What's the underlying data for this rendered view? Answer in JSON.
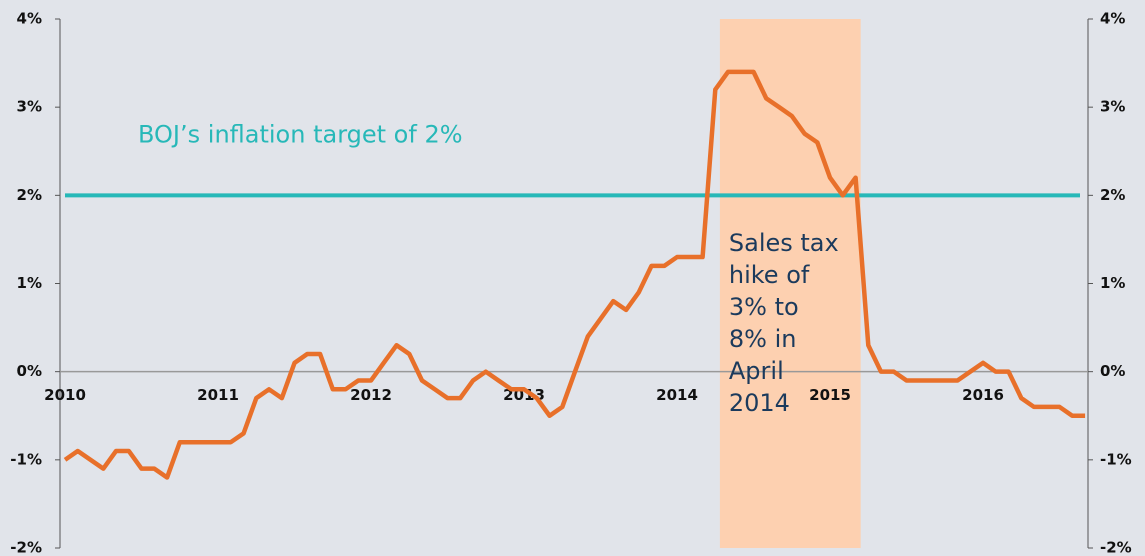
{
  "chart_data": {
    "type": "line",
    "x": [
      2010,
      2010.083,
      2010.167,
      2010.25,
      2010.333,
      2010.417,
      2010.5,
      2010.583,
      2010.667,
      2010.75,
      2010.833,
      2010.917,
      2011,
      2011.083,
      2011.167,
      2011.25,
      2011.333,
      2011.417,
      2011.5,
      2011.583,
      2011.667,
      2011.75,
      2011.833,
      2011.917,
      2012,
      2012.083,
      2012.167,
      2012.25,
      2012.333,
      2012.417,
      2012.5,
      2012.583,
      2012.667,
      2012.75,
      2012.833,
      2012.917,
      2013,
      2013.083,
      2013.167,
      2013.25,
      2013.333,
      2013.417,
      2013.5,
      2013.583,
      2013.667,
      2013.75,
      2013.833,
      2013.917,
      2014,
      2014.083,
      2014.167,
      2014.25,
      2014.333,
      2014.417,
      2014.5,
      2014.583,
      2014.667,
      2014.75,
      2014.833,
      2014.917,
      2015,
      2015.083,
      2015.167,
      2015.25,
      2015.333,
      2015.417,
      2015.5,
      2015.583,
      2015.667,
      2015.75,
      2015.833,
      2015.917,
      2016,
      2016.083,
      2016.167,
      2016.25,
      2016.333,
      2016.417,
      2016.5,
      2016.583,
      2016.667
    ],
    "series": [
      {
        "color": "#e8702a",
        "values": [
          -1.0,
          -0.9,
          -1.0,
          -1.1,
          -0.9,
          -0.9,
          -1.1,
          -1.1,
          -1.2,
          -0.8,
          -0.8,
          -0.8,
          -0.8,
          -0.8,
          -0.7,
          -0.3,
          -0.2,
          -0.3,
          0.1,
          0.2,
          0.2,
          -0.2,
          -0.2,
          -0.1,
          -0.1,
          0.1,
          0.3,
          0.2,
          -0.1,
          -0.2,
          -0.3,
          -0.3,
          -0.1,
          0.0,
          -0.1,
          -0.2,
          -0.2,
          -0.3,
          -0.5,
          -0.4,
          0.0,
          0.4,
          0.6,
          0.8,
          0.7,
          0.9,
          1.2,
          1.2,
          1.3,
          1.3,
          1.3,
          3.2,
          3.4,
          3.4,
          3.4,
          3.1,
          3.0,
          2.9,
          2.7,
          2.6,
          2.2,
          2.0,
          2.2,
          0.3,
          0.0,
          0.0,
          -0.1,
          -0.1,
          -0.1,
          -0.1,
          -0.1,
          0.0,
          0.1,
          0.0,
          0.0,
          -0.3,
          -0.4,
          -0.4,
          -0.4,
          -0.5,
          -0.5
        ]
      }
    ],
    "xlim": [
      2009.967,
      2016.686
    ],
    "xticks": [
      2010,
      2011,
      2012,
      2013,
      2014,
      2015,
      2016
    ],
    "ylim": [
      -2,
      4
    ],
    "yticks": [
      {
        "value": -2,
        "label": "-2%"
      },
      {
        "value": -1,
        "label": "-1%"
      },
      {
        "value": 0,
        "label": "0%"
      },
      {
        "value": 1,
        "label": "1%"
      },
      {
        "value": 2,
        "label": "2%"
      },
      {
        "value": 3,
        "label": "3%"
      },
      {
        "value": 4,
        "label": "4%"
      }
    ],
    "y2lim": [
      -2,
      4
    ],
    "y2ticks": [
      {
        "value": -2,
        "label": "-2%"
      },
      {
        "value": -1,
        "label": "-1%"
      },
      {
        "value": 0,
        "label": "0%"
      },
      {
        "value": 1,
        "label": "1%"
      },
      {
        "value": 2,
        "label": "2%"
      },
      {
        "value": 3,
        "label": "3%"
      },
      {
        "value": 4,
        "label": "4%"
      }
    ],
    "reference_line": {
      "value": 2,
      "label": "BOJ’s inflation target of 2%",
      "color": "#27b8b8"
    },
    "shaded_region": {
      "x": [
        2014.28,
        2015.2
      ],
      "color": "#fdd0b0",
      "label_lines": [
        "Sales tax",
        "hike of",
        "3% to",
        "8% in",
        "April",
        "2014"
      ]
    }
  }
}
